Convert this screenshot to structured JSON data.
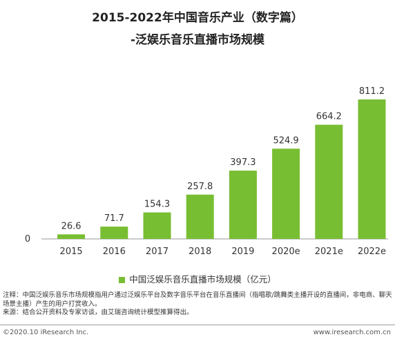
{
  "title": {
    "line1": "2015-2022年中国音乐产业（数字篇）",
    "line2": "-泛娱乐音乐直播市场规模"
  },
  "chart_data": {
    "type": "bar",
    "categories": [
      "2015",
      "2016",
      "2017",
      "2018",
      "2019",
      "2020e",
      "2021e",
      "2022e"
    ],
    "series": [
      {
        "name": "中国泛娱乐音乐直播市场规模（亿元）",
        "values": [
          26.6,
          71.7,
          154.3,
          257.8,
          397.3,
          524.9,
          664.2,
          811.2
        ],
        "labels": [
          "26.6",
          "71.7",
          "154.3",
          "257.8",
          "397.3",
          "524.9",
          "664.2",
          "811.2"
        ],
        "color": "#78be32"
      }
    ],
    "y_axis_zero_label": "0",
    "ylim": [
      0,
      811.2
    ],
    "grid": false,
    "legend_position": "bottom"
  },
  "notes": {
    "note": "注释：中国泛娱乐音乐市场规模指用户通过泛娱乐平台及数字音乐平台在音乐直播间（指唱歌/跳舞类主播开设的直播间，非电商、聊天场景主播）产生的用户打赏收入。",
    "source": "来源：结合公开资料及专家访谈，由艾瑞咨询统计模型推算得出。"
  },
  "footer": {
    "copyright": "©2020.10 iResearch Inc.",
    "website": "www.iresearch.com.cn"
  }
}
